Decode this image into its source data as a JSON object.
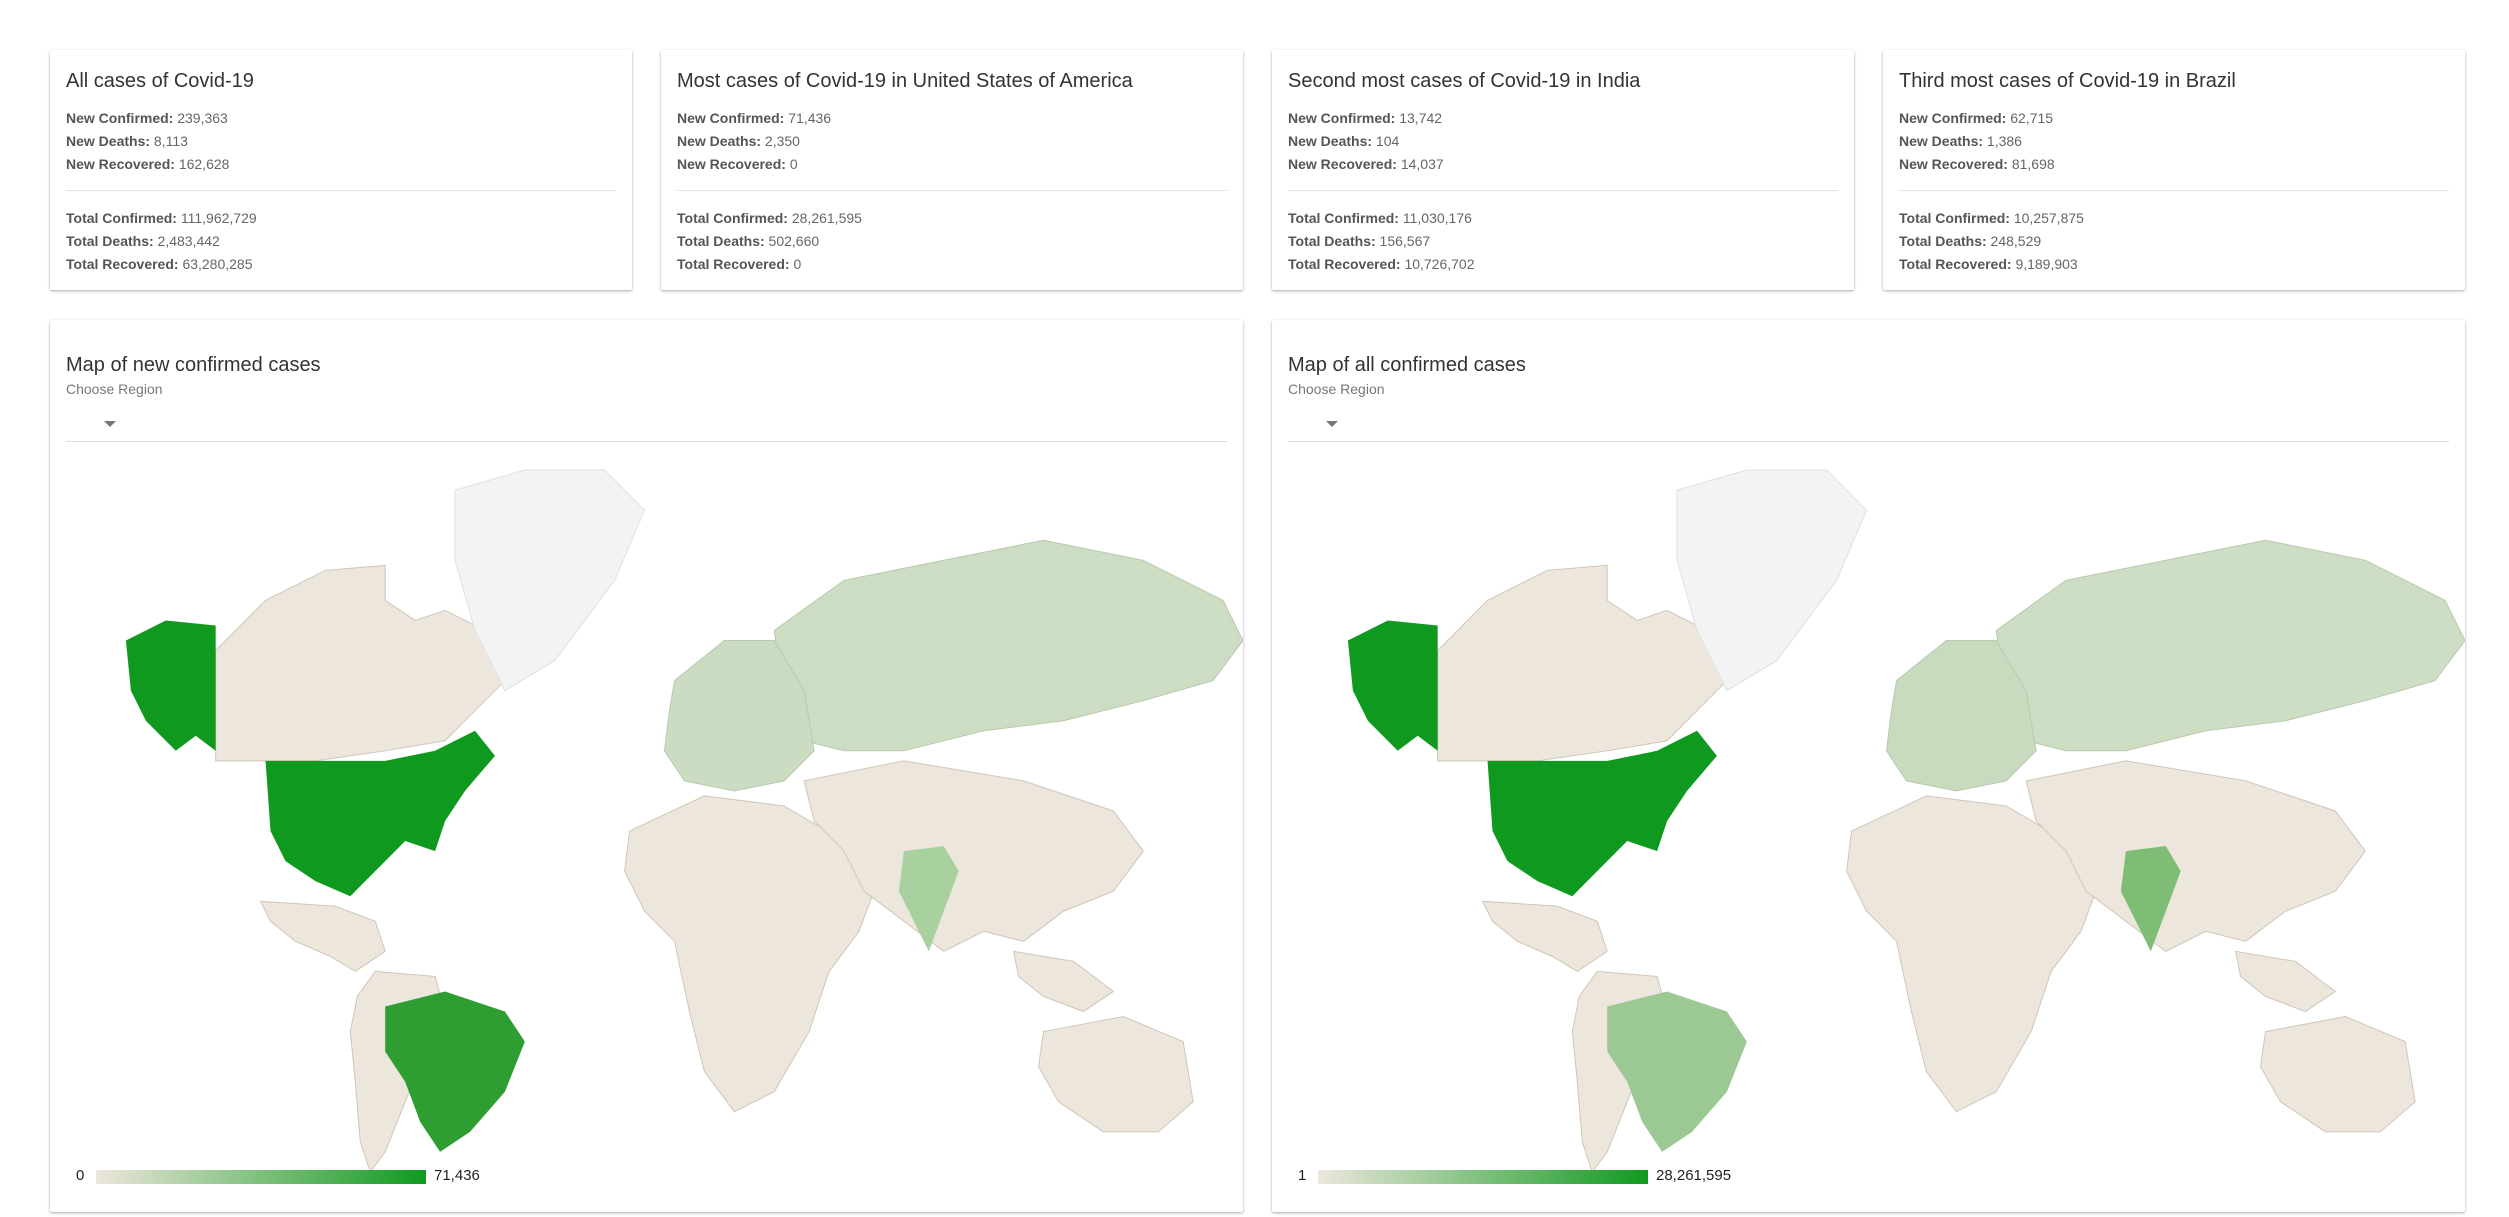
{
  "cards": [
    {
      "title": "All cases of Covid-19",
      "new_confirmed_label": "New Confirmed:",
      "new_confirmed": "239,363",
      "new_deaths_label": "New Deaths:",
      "new_deaths": "8,113",
      "new_recovered_label": "New Recovered:",
      "new_recovered": "162,628",
      "total_confirmed_label": "Total Confirmed:",
      "total_confirmed": "111,962,729",
      "total_deaths_label": "Total Deaths:",
      "total_deaths": "2,483,442",
      "total_recovered_label": "Total Recovered:",
      "total_recovered": "63,280,285"
    },
    {
      "title": "Most cases of Covid-19 in United States of America",
      "new_confirmed_label": "New Confirmed:",
      "new_confirmed": "71,436",
      "new_deaths_label": "New Deaths:",
      "new_deaths": "2,350",
      "new_recovered_label": "New Recovered:",
      "new_recovered": "0",
      "total_confirmed_label": "Total Confirmed:",
      "total_confirmed": "28,261,595",
      "total_deaths_label": "Total Deaths:",
      "total_deaths": "502,660",
      "total_recovered_label": "Total Recovered:",
      "total_recovered": "0"
    },
    {
      "title": "Second most cases of Covid-19 in India",
      "new_confirmed_label": "New Confirmed:",
      "new_confirmed": "13,742",
      "new_deaths_label": "New Deaths:",
      "new_deaths": "104",
      "new_recovered_label": "New Recovered:",
      "new_recovered": "14,037",
      "total_confirmed_label": "Total Confirmed:",
      "total_confirmed": "11,030,176",
      "total_deaths_label": "Total Deaths:",
      "total_deaths": "156,567",
      "total_recovered_label": "Total Recovered:",
      "total_recovered": "10,726,702"
    },
    {
      "title": "Third most cases of Covid-19 in Brazil",
      "new_confirmed_label": "New Confirmed:",
      "new_confirmed": "62,715",
      "new_deaths_label": "New Deaths:",
      "new_deaths": "1,386",
      "new_recovered_label": "New Recovered:",
      "new_recovered": "81,698",
      "total_confirmed_label": "Total Confirmed:",
      "total_confirmed": "10,257,875",
      "total_deaths_label": "Total Deaths:",
      "total_deaths": "248,529",
      "total_recovered_label": "Total Recovered:",
      "total_recovered": "9,189,903"
    }
  ],
  "maps": [
    {
      "title": "Map of new confirmed cases",
      "region_label": "Choose Region",
      "region_value": "",
      "legend_min": "0",
      "legend_max": "71,436",
      "shading": {
        "usa": "#0f9a1f",
        "brazil": "#2e9e33",
        "india": "#a9d1a0",
        "russia": "#cdddc3",
        "europe": "#cbdcc2"
      }
    },
    {
      "title": "Map of all confirmed cases",
      "region_label": "Choose Region",
      "region_value": "",
      "legend_min": "1",
      "legend_max": "28,261,595",
      "shading": {
        "usa": "#0f9a1f",
        "brazil": "#9cc893",
        "india": "#7fbc76",
        "russia": "#cddec4",
        "europe": "#c9dbbf"
      }
    }
  ],
  "colors": {
    "land": "#ede6dc",
    "greenland": "#f3f3f3",
    "legend_low": "#ede6dc",
    "legend_high": "#0f9a1f"
  }
}
